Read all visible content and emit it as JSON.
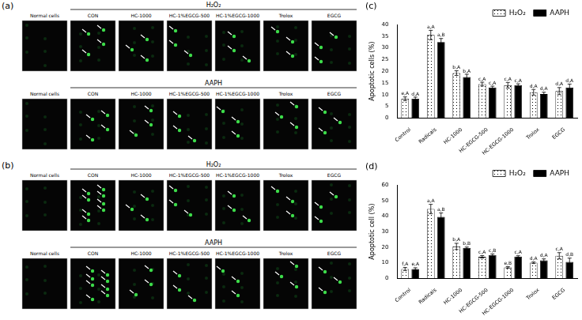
{
  "image_panels": [
    {
      "label": "(a)",
      "columns": [
        "Normal cells",
        "CON",
        "HC-1000",
        "HC-1%EGCG-500",
        "HC-1%EGCG-1000",
        "Trolox",
        "EGCG"
      ],
      "rows": [
        {
          "title": "H₂O₂"
        },
        {
          "title": "AAPH"
        }
      ]
    },
    {
      "label": "(b)",
      "columns": [
        "Normal cells",
        "CON",
        "HC-1000",
        "HC-1%EGCG-500",
        "HC-1%EGCG-1000",
        "Trolox",
        "EGCG"
      ],
      "rows": [
        {
          "title": "H₂O₂"
        },
        {
          "title": "AAPH"
        }
      ]
    }
  ],
  "chart_data": [
    {
      "panel": "(c)",
      "type": "bar",
      "y_label": "Apoptotic cells (%)",
      "categories": [
        "Control",
        "Radicals",
        "HC-1000",
        "HC-EGCG-500",
        "HC-EGCG-1000",
        "Trolox",
        "EGCG"
      ],
      "series": [
        {
          "name": "H₂O₂",
          "color": "#ffffff",
          "values": [
            8.2,
            35.5,
            19.2,
            14.5,
            14,
            11,
            11.5
          ],
          "errors": [
            0.8,
            2,
            1,
            0.8,
            1.2,
            1.2,
            1.5
          ],
          "letters": [
            "e,A",
            "a,A",
            "b,A",
            "c,A",
            "c,A",
            "d,A",
            "d,A"
          ]
        },
        {
          "name": "AAPH",
          "color": "#000000",
          "values": [
            8.2,
            32.5,
            17.5,
            13,
            14,
            10.2,
            13
          ],
          "errors": [
            0.7,
            1.5,
            1.2,
            0.6,
            0.6,
            0.8,
            1.5
          ],
          "letters": [
            "d,A",
            "a,B",
            "b,A",
            "c,A",
            "c,A",
            "d,A",
            "d,A"
          ]
        }
      ],
      "ylim": [
        0,
        40
      ],
      "yticks": [
        0,
        5,
        10,
        15,
        20,
        25,
        30,
        35,
        40
      ],
      "grid": false,
      "legend": "top"
    },
    {
      "panel": "(d)",
      "type": "bar",
      "y_label": "Apoptotic cell (%)",
      "categories": [
        "Control",
        "Radicals",
        "HC-1000",
        "HC-EGCG-500",
        "HC-EGCG-1000",
        "Trolox",
        "EGCG"
      ],
      "series": [
        {
          "name": "H₂O₂",
          "color": "#ffffff",
          "values": [
            6,
            44.5,
            20.5,
            13.8,
            7,
            10,
            14.5
          ],
          "errors": [
            1,
            3,
            2,
            0.8,
            0.5,
            0.5,
            2
          ],
          "letters": [
            "f,A",
            "a,A",
            "b,A",
            "c,A",
            "e,B",
            "d,A",
            "c,A"
          ]
        },
        {
          "name": "AAPH",
          "color": "#000000",
          "values": [
            6,
            39.5,
            19.5,
            15,
            14,
            11.5,
            10.5
          ],
          "errors": [
            0.8,
            2.5,
            0.6,
            0.7,
            0.5,
            1,
            2.5
          ],
          "letters": [
            "e,A",
            "a,B",
            "b,B",
            "c,B",
            "c,A",
            "d,A",
            "d,B"
          ]
        }
      ],
      "ylim": [
        0,
        60
      ],
      "yticks": [
        0,
        10,
        20,
        30,
        40,
        50,
        60
      ],
      "grid": false,
      "legend": "top"
    }
  ]
}
